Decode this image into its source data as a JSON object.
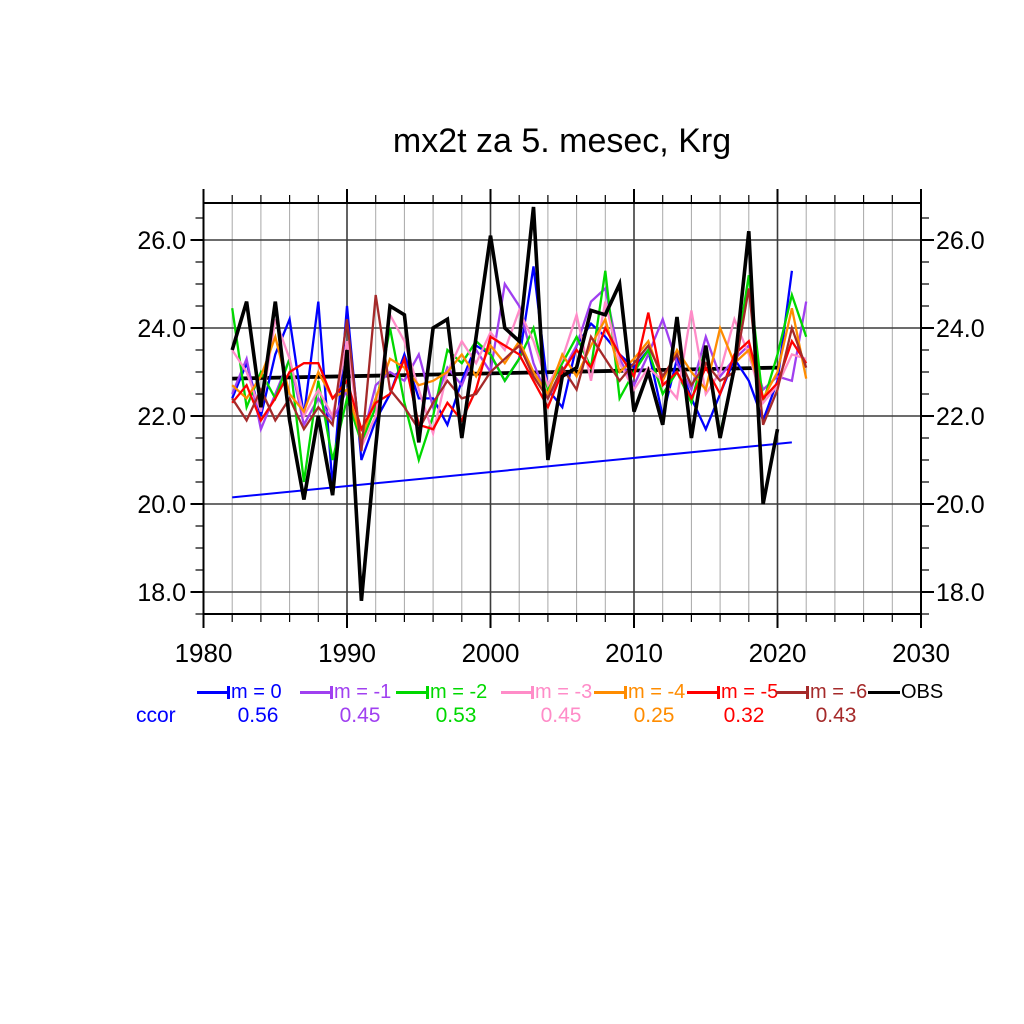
{
  "title": "mx2t za 5. mesec, Krg",
  "chart_data": {
    "type": "line",
    "title": "mx2t za 5. mesec, Krg",
    "xlabel": "",
    "ylabel": "",
    "x_range": [
      1980,
      2030
    ],
    "y_range": [
      17.5,
      26.85
    ],
    "x_ticks_major": [
      1980,
      1990,
      2000,
      2010,
      2020,
      2030
    ],
    "x_tick_minor_step": 2,
    "y_ticks_major": [
      18,
      20,
      22,
      24,
      26
    ],
    "y_tick_labels": [
      "18.0",
      "20.0",
      "22.0",
      "24.0",
      "26.0"
    ],
    "y_tick_minor_step": 0.5,
    "grid": {
      "horizontal": "major-only",
      "vertical": "every-2-years",
      "minor_color": "#a8a8a8",
      "major_color": "#3c3c3c"
    },
    "legend": {
      "position": "bottom",
      "ccor_label": "ccor"
    },
    "series": [
      {
        "id": "m-0",
        "label": "m = 0",
        "color": "#0000ff",
        "ccor": "0.56",
        "start_year": 1982,
        "values": [
          22.4,
          23.2,
          22.0,
          23.4,
          24.2,
          22.0,
          24.6,
          20.4,
          24.5,
          21.0,
          21.9,
          22.5,
          23.4,
          22.4,
          22.4,
          21.8,
          22.8,
          23.6,
          23.4,
          22.8,
          23.3,
          25.4,
          22.6,
          22.2,
          23.6,
          24.1,
          23.8,
          23.4,
          23.1,
          23.5,
          22.0,
          23.3,
          22.4,
          21.7,
          22.5,
          23.3,
          22.8,
          21.9,
          22.8,
          25.3
        ]
      },
      {
        "id": "m-1",
        "label": "m = -1",
        "color": "#a040f0",
        "ccor": "0.45",
        "start_year": 1982,
        "values": [
          22.5,
          23.3,
          21.7,
          22.5,
          23.3,
          21.8,
          22.4,
          21.9,
          22.6,
          21.4,
          22.7,
          23.0,
          22.8,
          23.4,
          22.2,
          23.1,
          22.7,
          23.5,
          23.0,
          25.0,
          24.5,
          23.2,
          22.4,
          23.0,
          23.6,
          24.6,
          24.9,
          23.3,
          22.7,
          23.4,
          24.2,
          23.2,
          22.6,
          23.8,
          22.9,
          23.3,
          23.6,
          22.6,
          22.9,
          22.8,
          24.6
        ]
      },
      {
        "id": "m-2",
        "label": "m = -2",
        "color": "#00d800",
        "ccor": "0.53",
        "start_year": 1982,
        "values": [
          24.45,
          22.2,
          23.0,
          22.4,
          23.3,
          20.5,
          22.8,
          21.0,
          22.4,
          21.4,
          22.2,
          24.0,
          22.3,
          21.0,
          22.0,
          23.5,
          23.2,
          23.7,
          23.4,
          22.8,
          23.3,
          24.0,
          22.6,
          23.2,
          23.8,
          23.1,
          25.3,
          22.4,
          23.0,
          23.5,
          22.5,
          23.0,
          22.3,
          23.6,
          21.6,
          23.1,
          25.2,
          22.3,
          23.4,
          24.75,
          23.8
        ]
      },
      {
        "id": "m-3",
        "label": "m = -3",
        "color": "#ff8cc8",
        "ccor": "0.45",
        "start_year": 1982,
        "values": [
          23.5,
          23.0,
          22.1,
          24.2,
          23.3,
          22.0,
          22.6,
          22.0,
          23.7,
          21.3,
          22.0,
          24.3,
          23.7,
          22.6,
          21.6,
          23.0,
          23.7,
          23.2,
          23.9,
          23.5,
          24.4,
          23.7,
          22.7,
          23.3,
          24.3,
          22.8,
          24.6,
          23.2,
          22.6,
          23.1,
          22.8,
          22.4,
          24.4,
          22.5,
          23.0,
          24.2,
          23.4,
          22.3,
          22.7,
          23.4,
          23.3
        ]
      },
      {
        "id": "m-4",
        "label": "m = -4",
        "color": "#ff8c00",
        "ccor": "0.25",
        "start_year": 1982,
        "values": [
          22.7,
          22.4,
          22.9,
          23.8,
          22.5,
          22.1,
          23.0,
          22.4,
          22.6,
          21.5,
          22.4,
          23.3,
          23.1,
          22.7,
          22.8,
          23.0,
          23.4,
          22.9,
          23.6,
          23.2,
          23.7,
          23.0,
          22.5,
          23.4,
          22.9,
          23.6,
          24.2,
          23.0,
          23.3,
          23.7,
          22.8,
          23.5,
          23.0,
          22.6,
          24.0,
          23.2,
          23.5,
          22.4,
          23.0,
          24.45,
          22.85
        ]
      },
      {
        "id": "m-5",
        "label": "m = -5",
        "color": "#ff0000",
        "ccor": "0.32",
        "start_year": 1982,
        "values": [
          22.3,
          22.7,
          21.9,
          22.4,
          23.0,
          23.2,
          23.2,
          22.4,
          22.8,
          21.7,
          22.3,
          22.5,
          23.3,
          21.8,
          21.7,
          22.3,
          21.9,
          22.6,
          23.8,
          23.6,
          23.4,
          22.8,
          22.2,
          23.0,
          23.5,
          23.1,
          24.0,
          23.4,
          22.9,
          24.35,
          22.7,
          23.0,
          22.4,
          23.1,
          22.5,
          23.4,
          23.7,
          22.4,
          22.75,
          23.7,
          23.2
        ]
      },
      {
        "id": "m-6",
        "label": "m = -6",
        "color": "#a52a2a",
        "ccor": "0.43",
        "start_year": 1982,
        "values": [
          22.4,
          21.9,
          22.6,
          21.9,
          22.4,
          21.7,
          22.2,
          21.8,
          24.2,
          21.2,
          24.75,
          22.6,
          22.2,
          21.7,
          22.3,
          22.8,
          22.4,
          22.5,
          23.0,
          23.3,
          23.6,
          22.9,
          22.4,
          23.1,
          22.6,
          23.8,
          23.3,
          22.8,
          23.2,
          23.6,
          22.9,
          23.4,
          22.7,
          23.2,
          22.8,
          23.0,
          24.9,
          21.8,
          22.6,
          24.0,
          23.1
        ]
      },
      {
        "id": "obs",
        "label": "OBS",
        "color": "#000000",
        "ccor": null,
        "start_year": 1982,
        "values": [
          23.5,
          24.6,
          22.2,
          24.6,
          21.9,
          20.1,
          22.0,
          20.2,
          23.5,
          17.8,
          21.3,
          24.5,
          24.3,
          21.4,
          24.0,
          24.2,
          21.5,
          23.8,
          26.1,
          24.0,
          23.7,
          26.75,
          21.0,
          22.9,
          23.1,
          24.4,
          24.3,
          25.0,
          22.1,
          23.0,
          21.8,
          24.25,
          21.5,
          23.6,
          21.5,
          23.1,
          26.2,
          20.0,
          21.7
        ]
      }
    ],
    "trend_lines": [
      {
        "id": "m-0-trend",
        "color": "#0000ff",
        "x": [
          1982,
          2021
        ],
        "y": [
          20.15,
          21.4
        ]
      },
      {
        "id": "obs-trend",
        "color": "#000000",
        "x": [
          1982,
          2020
        ],
        "y": [
          22.85,
          23.1
        ]
      }
    ]
  }
}
